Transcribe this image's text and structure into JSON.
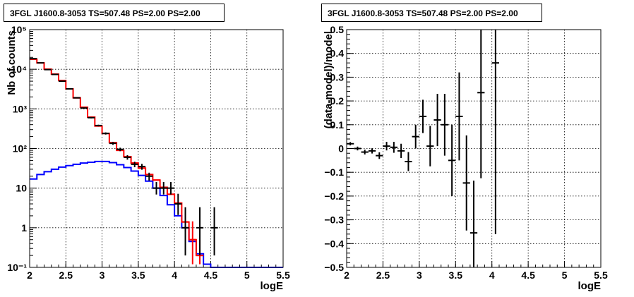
{
  "chart_data": [
    {
      "type": "step-histogram",
      "title": "3FGL J1600.8-3053 TS=507.48 PS=2.00 PS=2.00",
      "xlabel": "logE",
      "ylabel": "Nb of counts",
      "xlim": [
        2,
        5.5
      ],
      "ylim": [
        0.1,
        100000
      ],
      "yscale": "log",
      "grid": true,
      "x_ticks": [
        "2",
        "2.5",
        "3",
        "3.5",
        "4",
        "4.5",
        "5",
        "5.5"
      ],
      "y_ticks": [
        "10⁻¹",
        "1",
        "10",
        "10²",
        "10³",
        "10⁴",
        "10⁵"
      ],
      "bin_width": 0.1,
      "series": [
        {
          "color": "#0000ff",
          "style": "step",
          "x": [
            2.05,
            2.15,
            2.25,
            2.35,
            2.45,
            2.55,
            2.65,
            2.75,
            2.85,
            2.95,
            3.05,
            3.15,
            3.25,
            3.35,
            3.45,
            3.55,
            3.65,
            3.75,
            3.85,
            3.95,
            4.05,
            4.15,
            4.25,
            4.35,
            4.45,
            4.55,
            4.65,
            4.75,
            4.85,
            4.95,
            5.05,
            5.15,
            5.25,
            5.35,
            5.45
          ],
          "values": [
            17,
            22,
            26,
            30,
            34,
            37,
            40,
            43,
            45,
            47,
            47,
            44,
            39,
            33,
            27,
            21,
            15,
            10,
            6.5,
            3.8,
            2.0,
            1.0,
            0.45,
            0.22,
            0.12,
            0.1,
            0.1,
            0.1,
            0.1,
            0.1,
            0.1,
            0.1,
            0.1,
            0.1,
            0.1
          ]
        },
        {
          "color": "#ff0000",
          "style": "step",
          "x": [
            2.05,
            2.15,
            2.25,
            2.35,
            2.45,
            2.55,
            2.65,
            2.75,
            2.85,
            2.95,
            3.05,
            3.15,
            3.25,
            3.35,
            3.45,
            3.55,
            3.65,
            3.75,
            3.85,
            3.95,
            4.05,
            4.15,
            4.25,
            4.35
          ],
          "values": [
            18000,
            14500,
            10000,
            7500,
            5200,
            3200,
            1900,
            1100,
            620,
            370,
            240,
            140,
            90,
            62,
            43,
            32,
            22,
            16,
            10.5,
            7.0,
            4.2,
            1.4,
            0.5,
            0.2
          ]
        },
        {
          "color": "#ff0000",
          "style": "errorbar",
          "x": [
            2.05,
            2.15,
            2.25,
            2.35,
            2.45,
            2.55,
            2.65,
            2.75,
            2.85,
            2.95,
            3.05,
            3.15,
            3.25,
            3.35,
            3.45,
            3.55,
            3.65,
            3.75,
            3.85,
            3.95,
            4.05,
            4.15,
            4.25,
            4.35
          ],
          "values": [
            18000,
            14500,
            10000,
            7500,
            5200,
            3200,
            1900,
            1100,
            620,
            370,
            240,
            140,
            90,
            62,
            43,
            32,
            22,
            16,
            10.5,
            7.0,
            4.2,
            1.4,
            0.5,
            0.2
          ],
          "yerr_low": [
            0,
            0,
            0,
            0,
            0,
            0,
            0,
            0,
            0,
            0,
            0,
            0,
            0,
            0,
            0,
            0,
            0,
            0,
            0,
            0,
            0,
            0.6,
            0.38,
            0.08
          ],
          "yerr_high": [
            0,
            0,
            0,
            0,
            0,
            0,
            0,
            0,
            0,
            0,
            0,
            0,
            0,
            0,
            0,
            0,
            0,
            0,
            0,
            0,
            0,
            1.2,
            0.95,
            0.3
          ]
        },
        {
          "color": "#000000",
          "style": "errorbar",
          "x": [
            2.05,
            2.15,
            2.25,
            2.35,
            2.45,
            2.55,
            2.65,
            2.75,
            2.85,
            2.95,
            3.05,
            3.15,
            3.25,
            3.35,
            3.45,
            3.55,
            3.65,
            3.75,
            3.85,
            3.95,
            4.05,
            4.15,
            4.35,
            4.55
          ],
          "values": [
            18500,
            14500,
            9800,
            7400,
            5000,
            3200,
            1900,
            1050,
            600,
            380,
            240,
            135,
            95,
            60,
            40,
            35,
            20,
            10,
            10,
            10,
            4,
            1,
            1,
            1
          ],
          "yerr_low": [
            130,
            120,
            100,
            85,
            70,
            57,
            44,
            32,
            24,
            19,
            15,
            11,
            9.5,
            7.7,
            6.3,
            5.9,
            4.5,
            3.1,
            3.1,
            3.1,
            1.9,
            0.8,
            0.8,
            0.8
          ],
          "yerr_high": [
            130,
            120,
            100,
            85,
            70,
            57,
            44,
            32,
            24,
            19,
            15,
            11,
            9.5,
            7.7,
            6.3,
            5.9,
            4.5,
            4.3,
            4.3,
            4.3,
            3.2,
            2.3,
            2.3,
            2.3
          ]
        }
      ]
    },
    {
      "type": "errorbar",
      "title": "3FGL J1600.8-3053 TS=507.48 PS=2.00 PS=2.00",
      "xlabel": "logE",
      "ylabel": "(data-model)/model",
      "xlim": [
        2,
        5.5
      ],
      "ylim": [
        -0.5,
        0.5
      ],
      "grid": true,
      "x_ticks": [
        "2",
        "2.5",
        "3",
        "3.5",
        "4",
        "4.5",
        "5",
        "5.5"
      ],
      "y_ticks": [
        "−0.5",
        "−0.4",
        "−0.3",
        "−0.2",
        "−0.1",
        "0",
        "0.1",
        "0.2",
        "0.3",
        "0.4",
        "0.5"
      ],
      "bin_width": 0.1,
      "series": [
        {
          "color": "#000000",
          "x": [
            2.05,
            2.15,
            2.25,
            2.35,
            2.45,
            2.55,
            2.65,
            2.75,
            2.85,
            2.95,
            3.05,
            3.15,
            3.25,
            3.35,
            3.45,
            3.55,
            3.65,
            3.75,
            3.85,
            4.05
          ],
          "values": [
            0.02,
            0.0,
            -0.015,
            -0.01,
            -0.03,
            0.01,
            0.005,
            -0.01,
            -0.055,
            0.05,
            0.135,
            0.01,
            0.12,
            0.1,
            -0.05,
            0.135,
            -0.145,
            -0.355,
            0.235,
            0.36
          ],
          "yerr": [
            0.007,
            0.008,
            0.01,
            0.011,
            0.014,
            0.018,
            0.023,
            0.03,
            0.04,
            0.05,
            0.07,
            0.085,
            0.11,
            0.13,
            0.15,
            0.185,
            0.2,
            0.22,
            0.36,
            0.72
          ]
        }
      ]
    }
  ]
}
